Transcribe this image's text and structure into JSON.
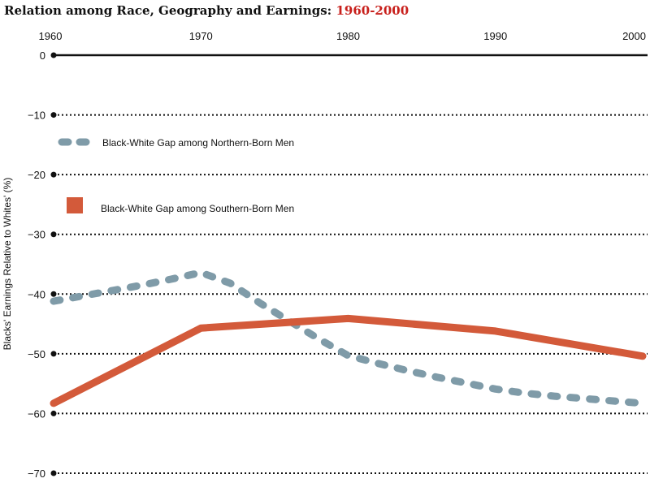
{
  "chart_data": {
    "type": "line",
    "title_main": "Relation among Race, Geography and Earnings: ",
    "title_highlight": "1960-2000",
    "ylabel": "Blacks' Earnings Relative to Whites' (%)",
    "xlabel": "",
    "x_ticks": [
      1960,
      1970,
      1980,
      1990,
      2000
    ],
    "y_ticks": [
      0,
      -10,
      -20,
      -30,
      -40,
      -50,
      -60,
      -70
    ],
    "y_tick_labels": [
      "0",
      "−10",
      "−20",
      "−30",
      "−40",
      "−50",
      "−60",
      "−70"
    ],
    "xlim": [
      1960,
      2000
    ],
    "ylim": [
      -70,
      0
    ],
    "grid": "horizontal dotted",
    "legend_placement": "upper-left",
    "series": [
      {
        "name": "Black-White Gap among Northern-Born Men",
        "style": "dashed",
        "color": "#7f9ba8",
        "x": [
          1960,
          1962,
          1964,
          1966,
          1968,
          1970,
          1972,
          1974,
          1976,
          1978,
          1980,
          1982,
          1984,
          1986,
          1988,
          1990,
          1992,
          1994,
          1996,
          1998,
          2000
        ],
        "y": [
          -41.2,
          -40.3,
          -39.4,
          -38.5,
          -37.5,
          -36.4,
          -38.2,
          -41.5,
          -44.5,
          -47.5,
          -50.3,
          -51.6,
          -52.8,
          -53.9,
          -54.9,
          -55.9,
          -56.6,
          -57.1,
          -57.5,
          -57.9,
          -58.3
        ]
      },
      {
        "name": "Black-White Gap among Southern-Born Men",
        "style": "solid",
        "color": "#d35a3a",
        "x": [
          1960,
          1970,
          1980,
          1990,
          2000
        ],
        "y": [
          -58.3,
          -45.7,
          -44.1,
          -46.2,
          -50.4
        ]
      }
    ]
  }
}
